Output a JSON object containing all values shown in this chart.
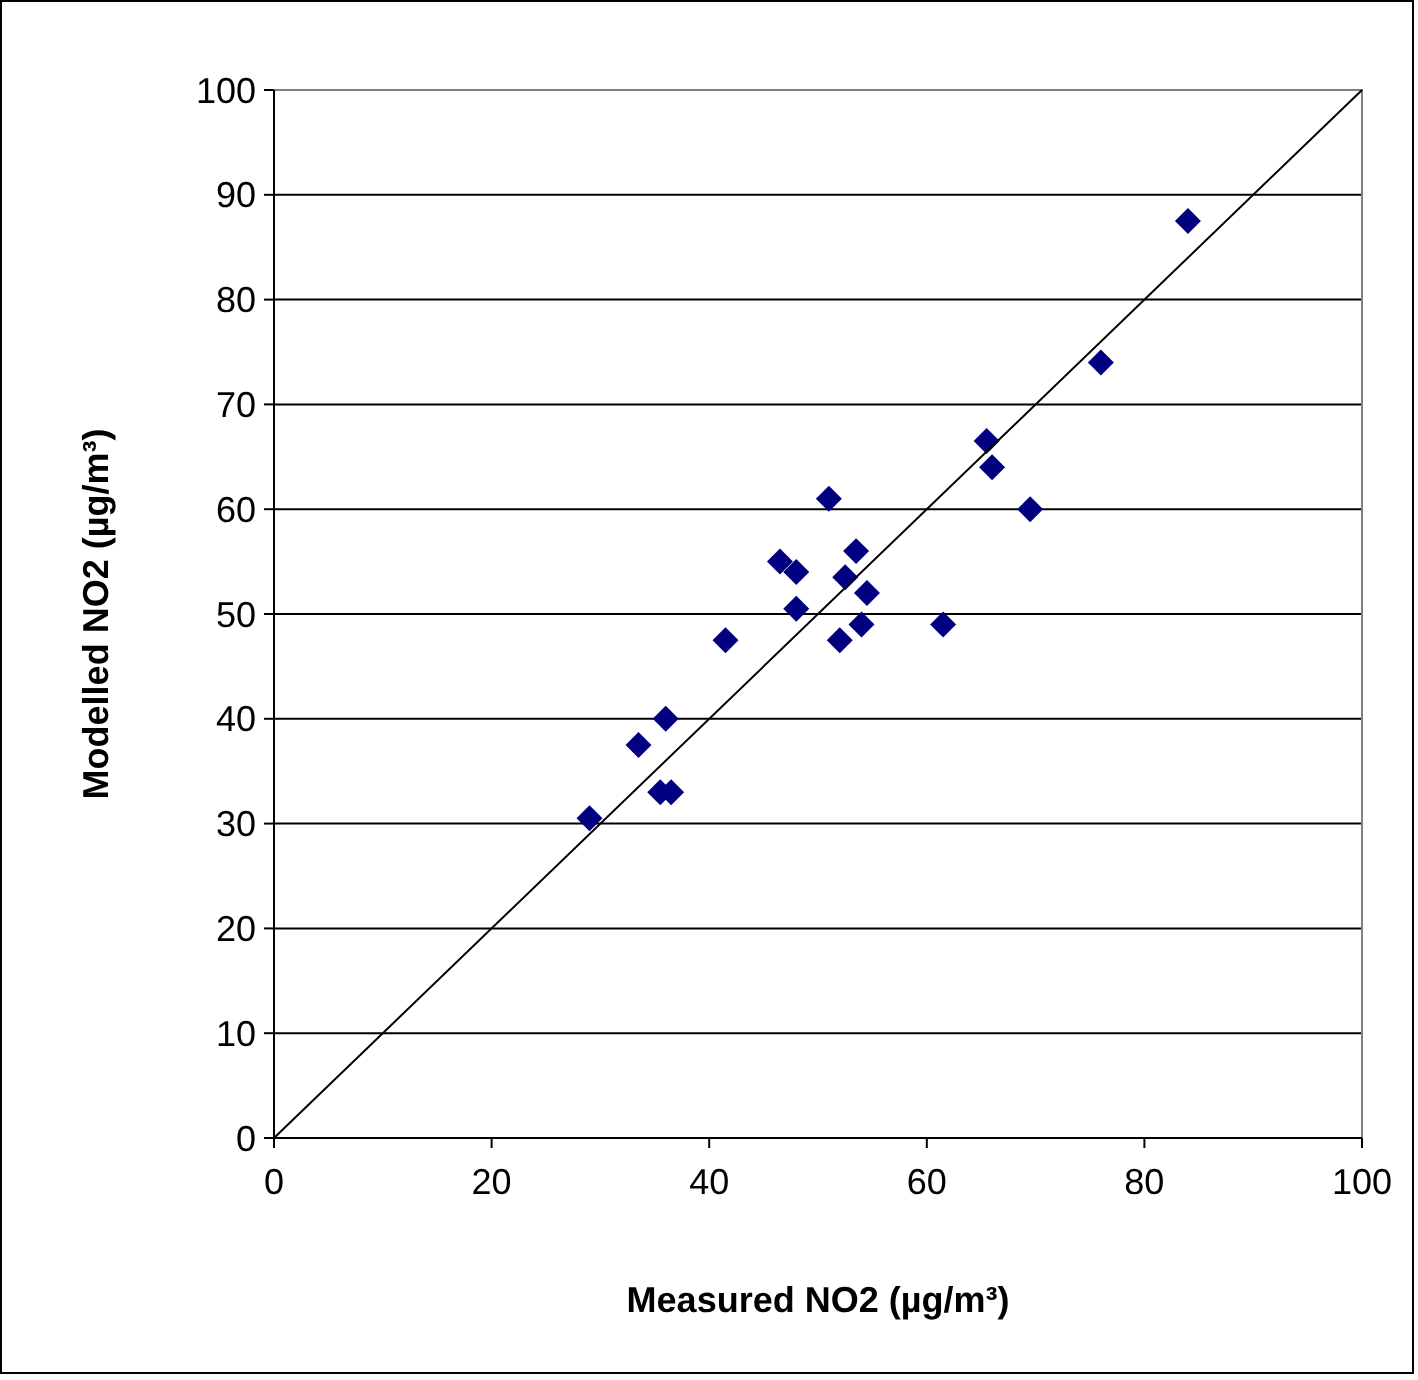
{
  "chart_data": {
    "type": "scatter",
    "xlabel": "Measured NO2 (µg/m³)",
    "ylabel": "Modelled NO2 (µg/m³)",
    "xlim": [
      0,
      100
    ],
    "xticks": [
      0,
      20,
      40,
      60,
      80,
      100
    ],
    "ylim": [
      0,
      100
    ],
    "yticks": [
      0,
      10,
      20,
      30,
      40,
      50,
      60,
      70,
      80,
      90,
      100
    ],
    "grid": "y",
    "marker": "diamond",
    "series": [
      {
        "color": "#000080",
        "x": [
          29,
          33.5,
          36,
          35.5,
          36.5,
          41.5,
          46.5,
          48,
          48,
          51,
          52,
          52.5,
          53.5,
          54,
          54.5,
          61.5,
          65.5,
          66,
          69.5,
          76,
          84
        ],
        "values": [
          30.5,
          37.5,
          40,
          33,
          33,
          47.5,
          55,
          54,
          50.5,
          61,
          47.5,
          53.5,
          56,
          49,
          52,
          49,
          66.5,
          64,
          60,
          74,
          87.5
        ]
      },
      {
        "type": "line",
        "color": "#000000",
        "marker": "none",
        "line_style": "solid",
        "x": [
          0,
          100
        ],
        "values": [
          0,
          100
        ]
      }
    ]
  }
}
